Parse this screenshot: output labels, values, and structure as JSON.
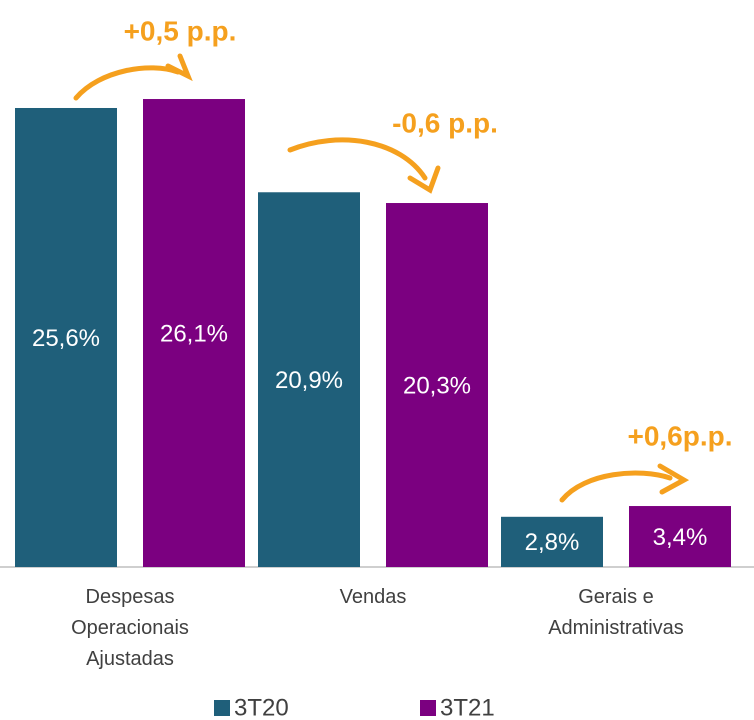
{
  "chart_data": {
    "type": "bar",
    "categories": [
      "Despesas Operacionais Ajustadas",
      "Vendas",
      "Gerais e Administrativas"
    ],
    "series": [
      {
        "name": "3T20",
        "color": "#1f5f7a",
        "values": [
          25.6,
          20.9,
          2.8
        ],
        "value_labels": [
          "25,6%",
          "20,9%",
          "2,8%"
        ]
      },
      {
        "name": "3T21",
        "color": "#7b0080",
        "values": [
          26.1,
          20.3,
          3.4
        ],
        "value_labels": [
          "26,1%",
          "20,3%",
          "3,4%"
        ]
      }
    ],
    "annotations": [
      "+0,5 p.p.",
      "-0,6 p.p.",
      "+0,6p.p."
    ],
    "annotation_color": "#f5a01e",
    "legend": "bottom"
  }
}
